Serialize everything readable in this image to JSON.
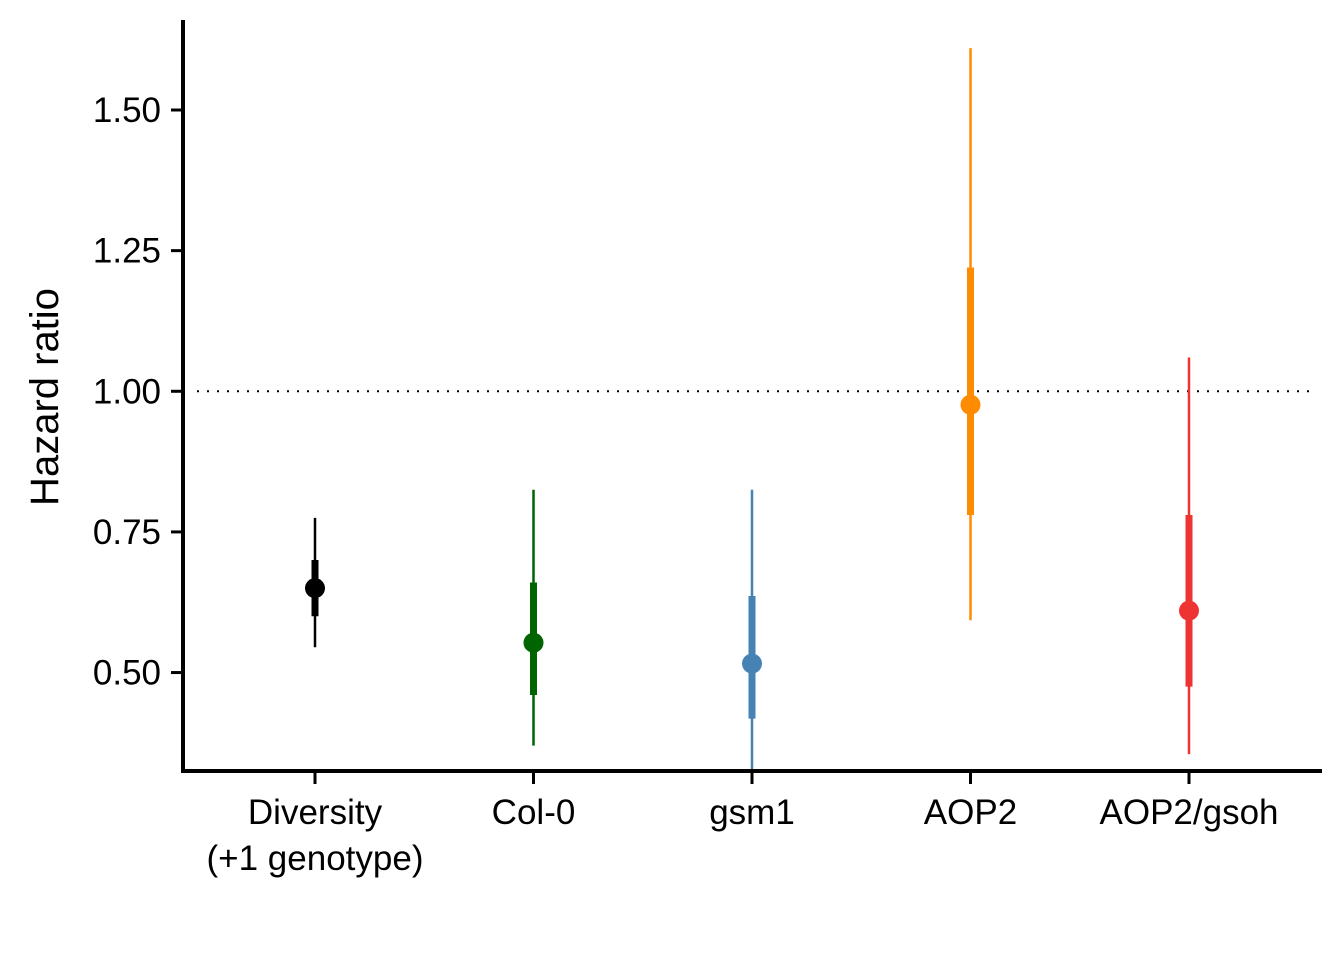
{
  "chart_data": {
    "type": "pointrange",
    "ylabel": "Hazard ratio",
    "xlabel": "",
    "ylim": [
      0.325,
      1.66
    ],
    "yticks": [
      0.5,
      0.75,
      1.0,
      1.25,
      1.5
    ],
    "ytick_labels": [
      "0.50",
      "0.75",
      "1.00",
      "1.25",
      "1.50"
    ],
    "reference_line": 1.0,
    "grid": false,
    "legend": "none",
    "categories": [
      [
        "Diversity",
        "(+1 genotype)"
      ],
      [
        "Col-0"
      ],
      [
        "gsm1"
      ],
      [
        "AOP2"
      ],
      [
        "AOP2/gsoh"
      ]
    ],
    "points": [
      {
        "estimate": 0.65,
        "inner": [
          0.6,
          0.7
        ],
        "outer": [
          0.545,
          0.775
        ],
        "color": "#000000"
      },
      {
        "estimate": 0.553,
        "inner": [
          0.46,
          0.66
        ],
        "outer": [
          0.37,
          0.825
        ],
        "color": "#006400"
      },
      {
        "estimate": 0.516,
        "inner": [
          0.418,
          0.636
        ],
        "outer": [
          0.323,
          0.825
        ],
        "color": "#4682B4"
      },
      {
        "estimate": 0.976,
        "inner": [
          0.78,
          1.22
        ],
        "outer": [
          0.593,
          1.61
        ],
        "color": "#FF8C00"
      },
      {
        "estimate": 0.61,
        "inner": [
          0.475,
          0.78
        ],
        "outer": [
          0.355,
          1.06
        ],
        "color": "#EE3333"
      }
    ]
  }
}
